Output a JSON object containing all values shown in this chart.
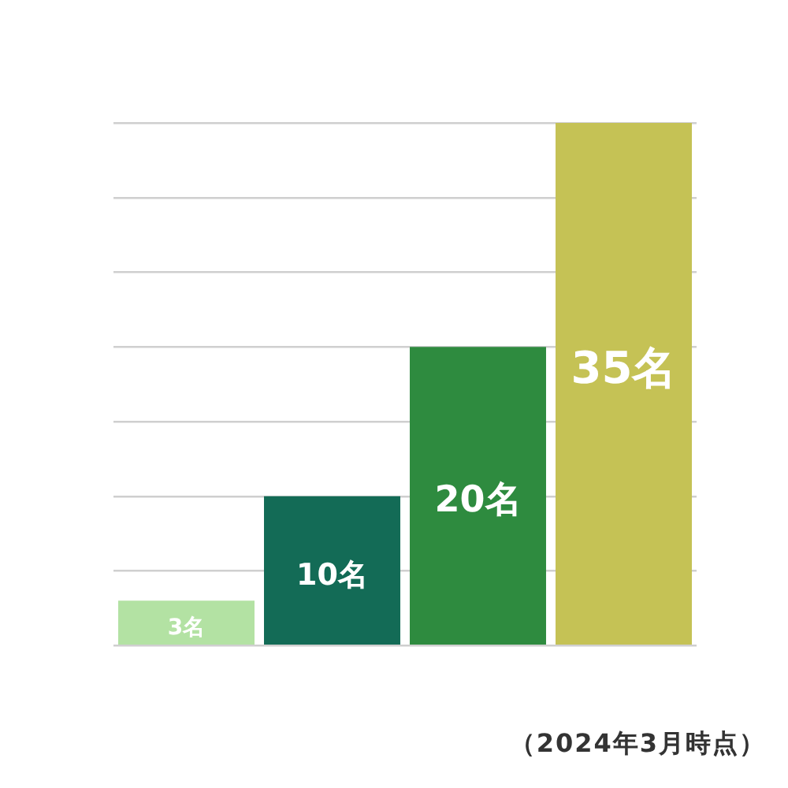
{
  "chart_data": {
    "type": "bar",
    "categories": [
      null,
      null,
      null,
      null
    ],
    "values": [
      3,
      10,
      20,
      35
    ],
    "colors": [
      "#b3e2a3",
      "#136b56",
      "#2e8b3f",
      "#c5c255"
    ],
    "value_labels": [
      "3名",
      "10名",
      "20名",
      "35名"
    ],
    "ylim": [
      0,
      35
    ],
    "yticks": [
      {
        "value": 0,
        "label": null
      },
      {
        "value": 5,
        "label": null
      },
      {
        "value": 10,
        "label": null
      },
      {
        "value": 15,
        "label": null
      },
      {
        "value": 20,
        "label": null
      },
      {
        "value": 25,
        "label": null
      },
      {
        "value": 30,
        "label": null
      },
      {
        "value": 35,
        "label": null
      }
    ],
    "grid": "y",
    "legend": false,
    "annotations": [
      "（2024年3月時点）"
    ]
  }
}
